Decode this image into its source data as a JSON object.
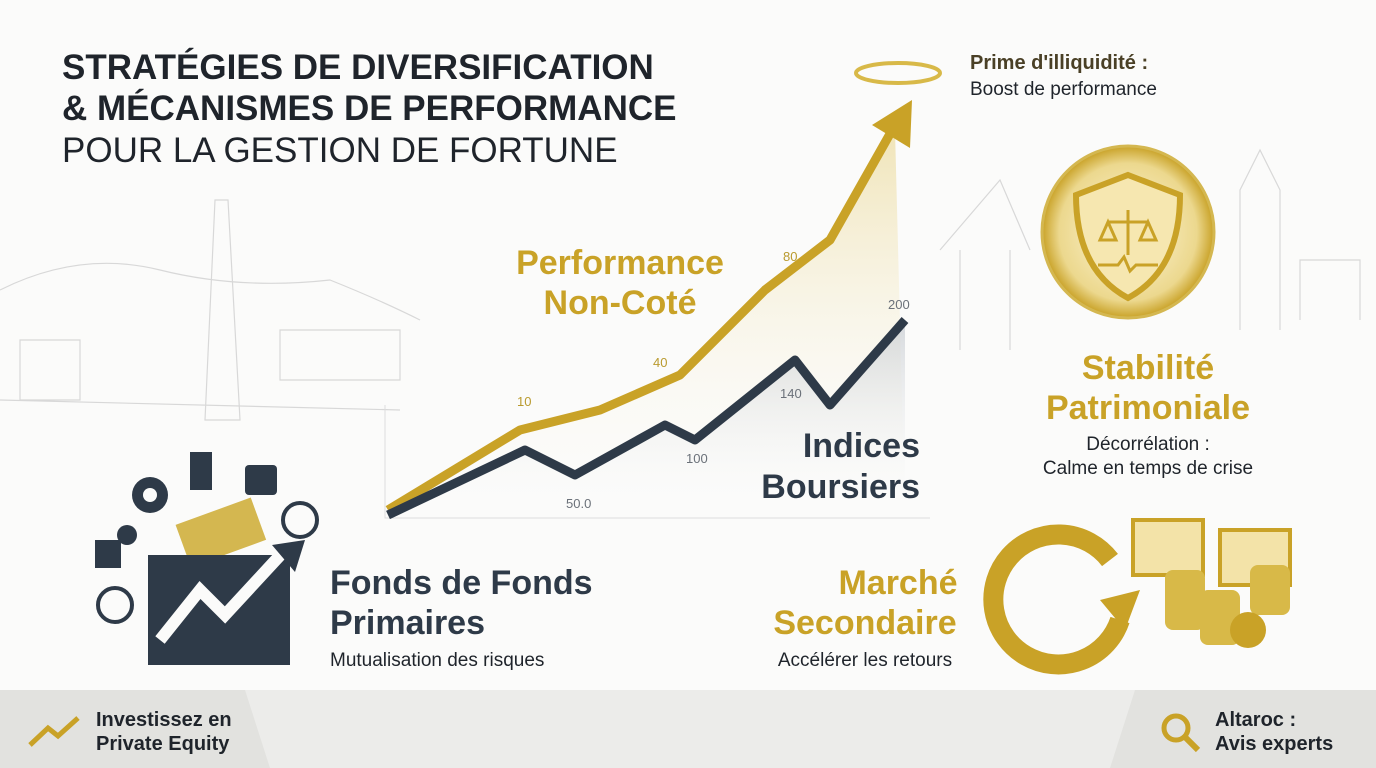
{
  "header": {
    "title_lines": [
      "STRATÉGIES DE DIVERSIFICATION",
      "& MÉCANISMES DE PERFORMANCE"
    ],
    "subtitle": "POUR LA GESTION DE FORTUNE"
  },
  "chart": {
    "private_label": [
      "Performance",
      "Non-Coté"
    ],
    "public_label": [
      "Indices",
      "Boursiers"
    ],
    "private_points": [
      "10",
      "40",
      "80"
    ],
    "public_points": [
      "50.0",
      "100",
      "140",
      "200"
    ]
  },
  "illiquidity": {
    "title": "Prime d'illiquidité :",
    "text": "Boost de performance"
  },
  "stability": {
    "title": [
      "Stabilité",
      "Patrimoniale"
    ],
    "text": [
      "Décorrélation :",
      "Calme en temps de crise"
    ]
  },
  "fund_of_funds": {
    "title": [
      "Fonds de Fonds",
      "Primaires"
    ],
    "text": "Mutualisation des risques"
  },
  "secondary": {
    "title": [
      "Marché",
      "Secondaire"
    ],
    "text": "Accélérer les retours"
  },
  "footer": {
    "left": [
      "Investissez en",
      "Private Equity"
    ],
    "right": [
      "Altaroc :",
      "Avis experts"
    ]
  }
}
